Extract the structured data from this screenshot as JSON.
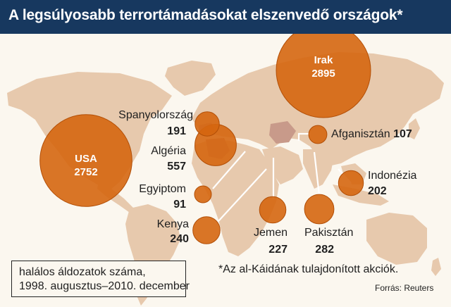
{
  "title": "A legsúlyosabb terrortámadásokat elszenvedő országok*",
  "colors": {
    "header": "#17385f",
    "bubble": "#d5660f",
    "land": "#e7c9ad",
    "land_highlight": "#c89a8a",
    "ocean": "#fbf7ef"
  },
  "countries": [
    {
      "id": "usa",
      "name": "USA",
      "value": 2752
    },
    {
      "id": "irak",
      "name": "Irak",
      "value": 2895
    },
    {
      "id": "spanyolorszag",
      "name": "Spanyolország",
      "value": 191
    },
    {
      "id": "algeria",
      "name": "Algéria",
      "value": 557
    },
    {
      "id": "egyiptom",
      "name": "Egyiptom",
      "value": 91
    },
    {
      "id": "kenya",
      "name": "Kenya",
      "value": 240
    },
    {
      "id": "jemen",
      "name": "Jemen",
      "value": 227
    },
    {
      "id": "pakisztan",
      "name": "Pakisztán",
      "value": 282
    },
    {
      "id": "afganisztan",
      "name": "Afganisztán",
      "value": 107
    },
    {
      "id": "indonezia",
      "name": "Indonézia",
      "value": 202
    }
  ],
  "legend": {
    "line1": "halálos áldozatok száma,",
    "line2": "1998. augusztus–2010. december"
  },
  "footnote": "*Az al-Káidának tulajdonított akciók.",
  "source": "Forrás: Reuters"
}
